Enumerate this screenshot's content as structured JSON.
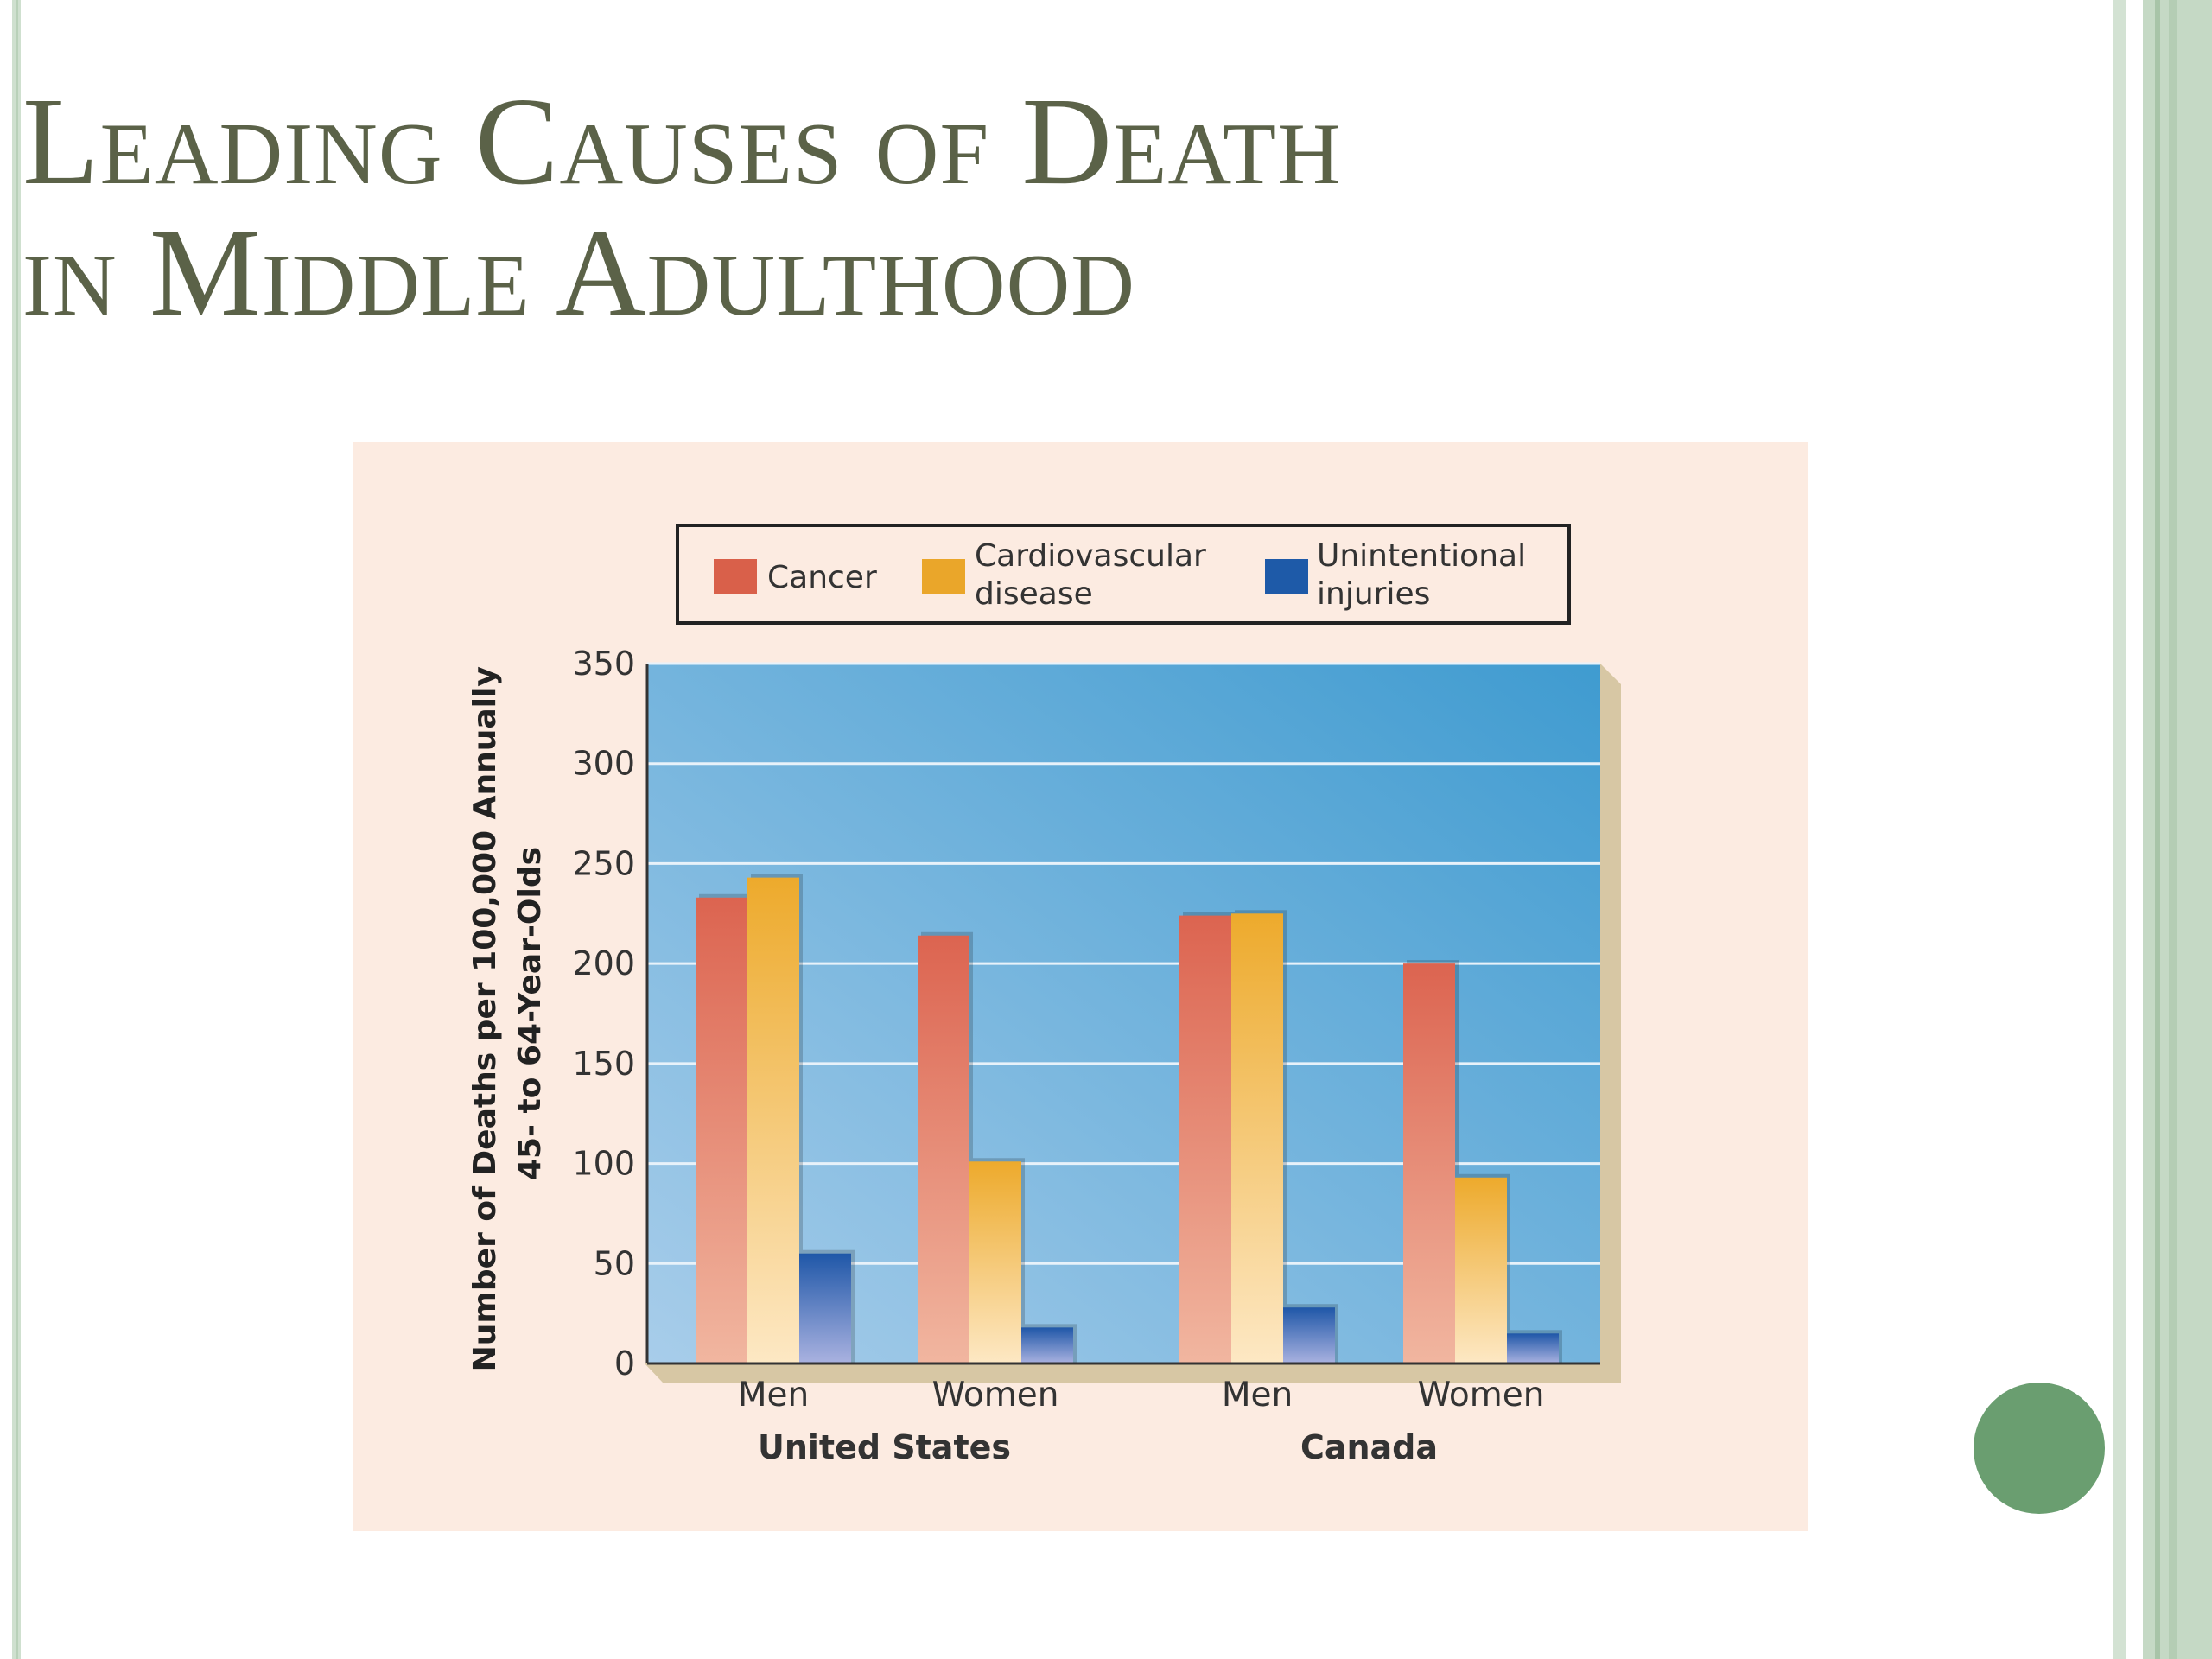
{
  "slide": {
    "title_line1": "Leading Causes of Death",
    "title_line2": "in Middle Adulthood",
    "title_color": "#5b6248",
    "accent_color": "#6a9e70"
  },
  "chart_data": {
    "type": "bar",
    "categories": [
      "Men",
      "Women",
      "Men",
      "Women"
    ],
    "groups": [
      {
        "label": "United States",
        "categories": [
          "Men",
          "Women"
        ]
      },
      {
        "label": "Canada",
        "categories": [
          "Men",
          "Women"
        ]
      }
    ],
    "series": [
      {
        "name": "Cancer",
        "color": "#d9604a",
        "values": [
          233,
          214,
          224,
          200
        ]
      },
      {
        "name": "Cardiovascular disease",
        "name_lines": [
          "Cardiovascular",
          "disease"
        ],
        "color": "#eaa62a",
        "values": [
          243,
          101,
          225,
          93
        ]
      },
      {
        "name": "Unintentional injuries",
        "name_lines": [
          "Unintentional",
          "injuries"
        ],
        "color": "#1e5aa8",
        "values": [
          55,
          18,
          28,
          15
        ]
      }
    ],
    "ylabel_lines": [
      "Number of Deaths per 100,000 Annually",
      "45- to 64-Year-Olds"
    ],
    "xlabel": "",
    "ylim": [
      0,
      350
    ],
    "yticks": [
      0,
      50,
      100,
      150,
      200,
      250,
      300,
      350
    ],
    "grid": true,
    "legend_position": "top"
  }
}
